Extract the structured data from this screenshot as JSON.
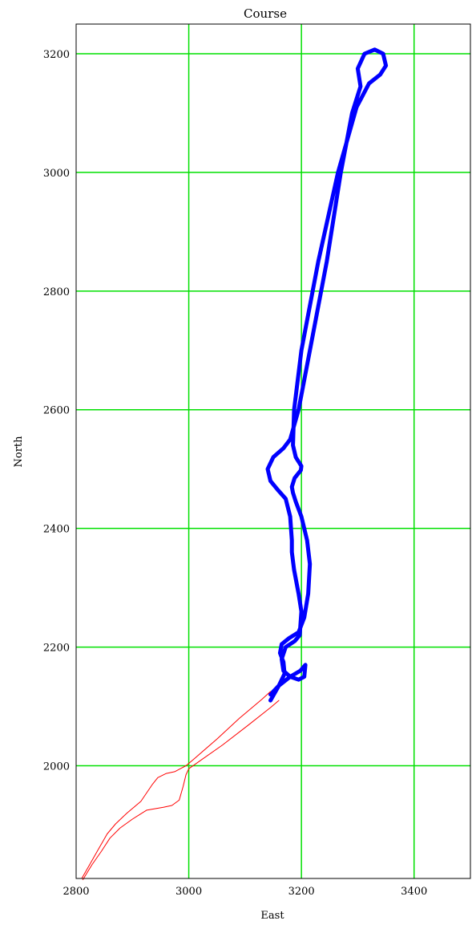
{
  "chart_data": {
    "type": "line",
    "title": "Course",
    "xlabel": "East",
    "ylabel": "North",
    "xlim": [
      2800,
      3500
    ],
    "ylim": [
      1810,
      3250
    ],
    "xticks": [
      2800,
      3000,
      3200,
      3400
    ],
    "yticks": [
      2000,
      2200,
      2400,
      2600,
      2800,
      3000,
      3200
    ],
    "grid": true,
    "grid_color": "#00e000",
    "series": [
      {
        "color": "#0000ff",
        "style": "thick",
        "x": [
          3145,
          3160,
          3170,
          3168,
          3162,
          3165,
          3178,
          3195,
          3205,
          3212,
          3215,
          3210,
          3200,
          3190,
          3185,
          3183,
          3188,
          3199,
          3200,
          3190,
          3185,
          3187,
          3200,
          3230,
          3265,
          3298,
          3320,
          3340,
          3350,
          3345,
          3330,
          3312,
          3300,
          3305,
          3300,
          3290,
          3270,
          3245,
          3215,
          3195,
          3180,
          3168,
          3150,
          3140,
          3145,
          3158,
          3172,
          3180,
          3183,
          3183,
          3187,
          3195,
          3200,
          3197,
          3188,
          3172,
          3165,
          3168,
          3180,
          3195,
          3205,
          3207,
          3198,
          3180,
          3160,
          3145
        ],
        "y": [
          2110,
          2135,
          2155,
          2175,
          2190,
          2205,
          2215,
          2225,
          2250,
          2290,
          2340,
          2380,
          2420,
          2445,
          2460,
          2470,
          2485,
          2498,
          2505,
          2520,
          2540,
          2600,
          2700,
          2850,
          3000,
          3110,
          3150,
          3165,
          3180,
          3200,
          3207,
          3200,
          3175,
          3145,
          3130,
          3100,
          3000,
          2850,
          2700,
          2600,
          2550,
          2535,
          2520,
          2500,
          2480,
          2465,
          2450,
          2420,
          2380,
          2360,
          2330,
          2290,
          2260,
          2220,
          2210,
          2200,
          2180,
          2160,
          2150,
          2145,
          2150,
          2170,
          2160,
          2150,
          2135,
          2120
        ]
      },
      {
        "color": "#ff0000",
        "style": "thin",
        "x": [
          2810,
          2825,
          2840,
          2855,
          2870,
          2890,
          2915,
          2935,
          2945,
          2960,
          2975,
          2985,
          2995,
          3010,
          3050,
          3090,
          3130,
          3145
        ],
        "y": [
          1810,
          1835,
          1860,
          1885,
          1902,
          1920,
          1940,
          1968,
          1980,
          1987,
          1990,
          1995,
          2000,
          2012,
          2045,
          2080,
          2112,
          2125
        ]
      },
      {
        "color": "#ff0000",
        "style": "thin",
        "x": [
          2812,
          2828,
          2845,
          2860,
          2878,
          2900,
          2925,
          2955,
          2970,
          2983,
          2990,
          2995,
          3000,
          3015,
          3060,
          3105,
          3145,
          3160
        ],
        "y": [
          1808,
          1833,
          1856,
          1878,
          1895,
          1910,
          1925,
          1930,
          1933,
          1942,
          1965,
          1985,
          1995,
          2005,
          2035,
          2068,
          2098,
          2110
        ]
      }
    ]
  }
}
